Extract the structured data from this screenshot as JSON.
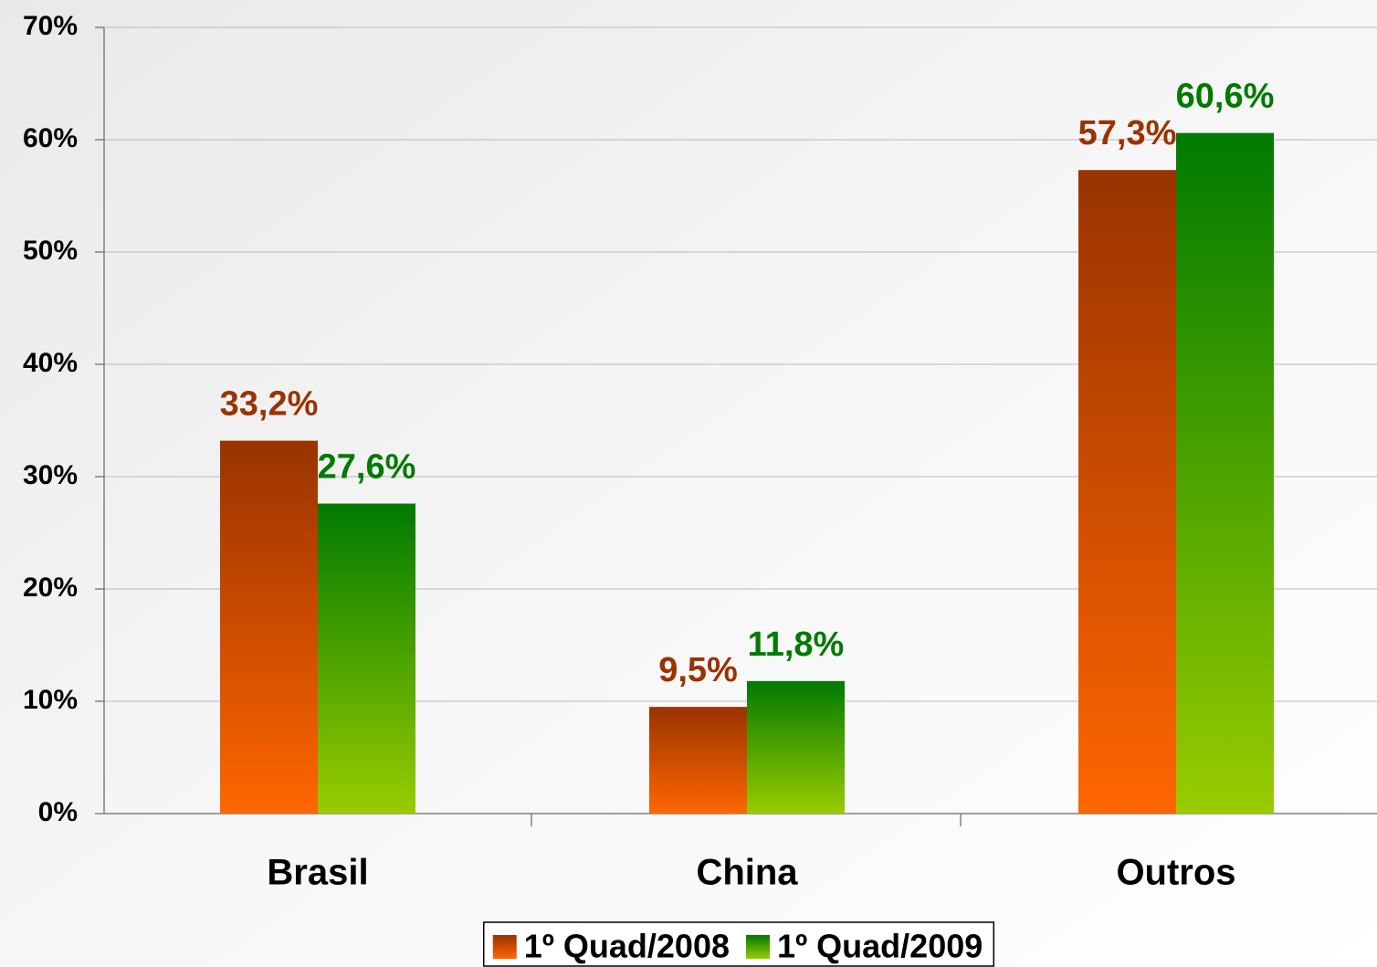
{
  "chart_data": {
    "type": "bar",
    "categories": [
      "Brasil",
      "China",
      "Outros"
    ],
    "series": [
      {
        "name": "1º Quad/2008",
        "color": "#ff6600",
        "label_color": "#993300",
        "values": [
          33.2,
          9.5,
          57.3
        ],
        "value_labels": [
          "33,2%",
          "9,5%",
          "57,3%"
        ]
      },
      {
        "name": "1º Quad/2009",
        "color": "#99cc00",
        "label_color": "#007a00",
        "values": [
          27.6,
          11.8,
          60.6
        ],
        "value_labels": [
          "27,6%",
          "11,8%",
          "60,6%"
        ]
      }
    ],
    "ylim": [
      0,
      70
    ],
    "yticks": [
      {
        "value": 0,
        "label": "0%"
      },
      {
        "value": 10,
        "label": "10%"
      },
      {
        "value": 20,
        "label": "20%"
      },
      {
        "value": 30,
        "label": "30%"
      },
      {
        "value": 40,
        "label": "40%"
      },
      {
        "value": 50,
        "label": "50%"
      },
      {
        "value": 60,
        "label": "60%"
      },
      {
        "value": 70,
        "label": "70%"
      }
    ],
    "grid": true,
    "legend": "bottom"
  }
}
